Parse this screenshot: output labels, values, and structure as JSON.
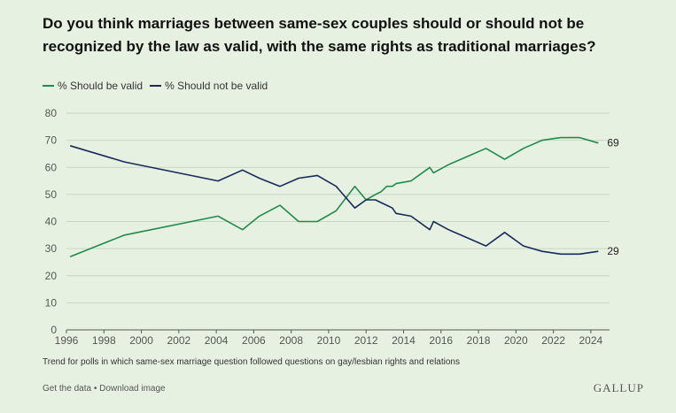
{
  "title": "Do you think marriages between same-sex couples should or should not be recognized by the law as valid, with the same rights as traditional marriages?",
  "legend": [
    {
      "label": "% Should be valid",
      "color": "#1e8c4b"
    },
    {
      "label": "% Should not be valid",
      "color": "#172a5c"
    }
  ],
  "footnote": "Trend for polls in which same-sex marriage question followed questions on gay/lesbian rights and relations",
  "links": {
    "get_data": "Get the data",
    "separator": "•",
    "download": "Download image"
  },
  "brand": "GALLUP",
  "chart_data": {
    "type": "line",
    "xlim": [
      1996,
      2025
    ],
    "ylim": [
      0,
      80
    ],
    "yticks": [
      0,
      10,
      20,
      30,
      40,
      50,
      60,
      70,
      80
    ],
    "xticks": [
      1996,
      1998,
      2000,
      2002,
      2004,
      2006,
      2008,
      2010,
      2012,
      2014,
      2016,
      2018,
      2020,
      2022,
      2024
    ],
    "grid": "horizontal",
    "legend_position": "top-left",
    "series": [
      {
        "name": "% Should be valid",
        "color": "#1e8c4b",
        "end_label": "69",
        "x": [
          1996.2,
          1999.1,
          2004.1,
          2005.4,
          2006.3,
          2007.4,
          2008.4,
          2009.4,
          2010.4,
          2011.4,
          2012.0,
          2012.5,
          2012.8,
          2013.1,
          2013.4,
          2013.6,
          2014.4,
          2015.4,
          2015.6,
          2016.4,
          2017.4,
          2018.4,
          2019.4,
          2020.4,
          2021.4,
          2022.4,
          2023.4,
          2024.4
        ],
        "y": [
          27,
          35,
          42,
          37,
          42,
          46,
          40,
          40,
          44,
          53,
          48,
          50,
          51,
          53,
          53,
          54,
          55,
          60,
          58,
          61,
          64,
          67,
          63,
          67,
          70,
          71,
          71,
          69
        ]
      },
      {
        "name": "% Should not be valid",
        "color": "#172a5c",
        "end_label": "29",
        "x": [
          1996.2,
          1999.1,
          2004.1,
          2005.4,
          2006.3,
          2007.4,
          2008.4,
          2009.4,
          2010.4,
          2011.4,
          2012.0,
          2012.5,
          2012.8,
          2013.1,
          2013.4,
          2013.6,
          2014.4,
          2015.4,
          2015.6,
          2016.4,
          2017.4,
          2018.4,
          2019.4,
          2020.4,
          2021.4,
          2022.4,
          2023.4,
          2024.4
        ],
        "y": [
          68,
          62,
          55,
          59,
          56,
          53,
          56,
          57,
          53,
          45,
          48,
          48,
          47,
          46,
          45,
          43,
          42,
          37,
          40,
          37,
          34,
          31,
          36,
          31,
          29,
          28,
          28,
          29
        ]
      }
    ]
  }
}
